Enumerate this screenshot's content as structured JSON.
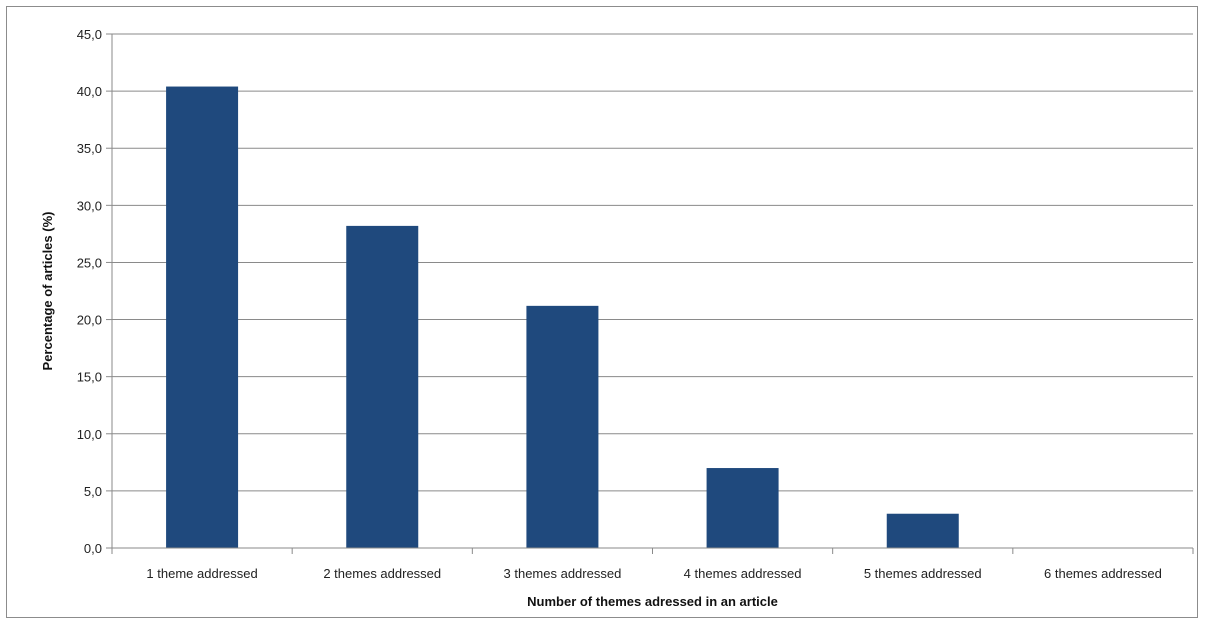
{
  "chart_data": {
    "type": "bar",
    "title": "",
    "xlabel": "Number of themes adressed in an article",
    "ylabel": "Percentage of articles (%)",
    "categories": [
      "1 theme addressed",
      "2 themes addressed",
      "3 themes addressed",
      "4 themes addressed",
      "5 themes addressed",
      "6 themes addressed"
    ],
    "values": [
      40.4,
      28.2,
      21.2,
      7.0,
      3.0,
      0.0
    ],
    "ylim": [
      0,
      45
    ],
    "yticks": [
      "0,0",
      "5,0",
      "10,0",
      "15,0",
      "20,0",
      "25,0",
      "30,0",
      "35,0",
      "40,0",
      "45,0"
    ],
    "grid": true,
    "legend": "none",
    "bar_color": "#1f497d"
  }
}
